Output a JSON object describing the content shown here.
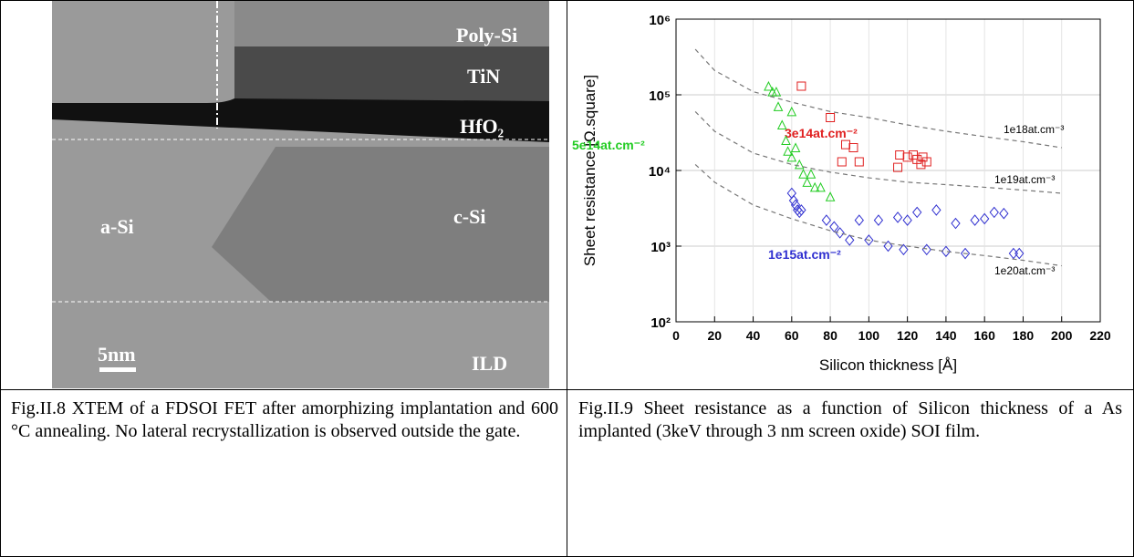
{
  "image_labels": {
    "poly": "Poly-Si",
    "tin": "TiN",
    "hfo2": "HfO₂",
    "asi": "a-Si",
    "csi": "c-Si",
    "ild": "ILD",
    "scale": "5nm"
  },
  "captions": {
    "left": "Fig.II.8 XTEM of a FDSOI FET after amorphizing implantation and 600 °C annealing. No lateral recrystallization is observed outside the gate.",
    "right": "Fig.II.9 Sheet resistance as a function of Silicon thickness of a As implanted (3keV through 3 nm screen oxide) SOI film."
  },
  "chart_data": {
    "type": "scatter",
    "xlabel": "Silicon thickness [Å]",
    "ylabel": "Sheet resistance [Ω.square]",
    "xlim": [
      0,
      220
    ],
    "xticks": [
      0,
      20,
      40,
      60,
      80,
      100,
      120,
      140,
      160,
      180,
      200,
      220
    ],
    "ylim": [
      100,
      1000000
    ],
    "log_y": true,
    "grid": true,
    "yticks": [
      {
        "value": 100,
        "label": "10²"
      },
      {
        "value": 1000,
        "label": "10³"
      },
      {
        "value": 10000,
        "label": "10⁴"
      },
      {
        "value": 100000,
        "label": "10⁵"
      },
      {
        "value": 1000000,
        "label": "10⁶"
      }
    ],
    "series": [
      {
        "name": "3e14at.cm⁻²",
        "color": "#e02020",
        "marker": "square",
        "x": [
          65,
          80,
          86,
          88,
          92,
          95,
          115,
          116,
          120,
          123,
          125,
          127,
          128,
          130
        ],
        "values": [
          130000,
          50000,
          13000,
          22000,
          20000,
          13000,
          11000,
          16000,
          15000,
          16000,
          14000,
          12000,
          15000,
          13000
        ]
      },
      {
        "name": "5e14at.cm⁻²",
        "color": "#22cc22",
        "marker": "triangle",
        "x": [
          48,
          50,
          52,
          53,
          55,
          57,
          58,
          60,
          60,
          62,
          64,
          66,
          68,
          70,
          72,
          75,
          80
        ],
        "values": [
          130000,
          110000,
          110000,
          70000,
          40000,
          25000,
          18000,
          15000,
          60000,
          20000,
          12000,
          9000,
          7000,
          9000,
          6000,
          6000,
          4500
        ]
      },
      {
        "name": "1e15at.cm⁻²",
        "color": "#3030d0",
        "marker": "diamond",
        "x": [
          60,
          61,
          62,
          63,
          64,
          65,
          78,
          82,
          85,
          90,
          95,
          100,
          105,
          110,
          115,
          118,
          120,
          125,
          130,
          135,
          140,
          145,
          150,
          155,
          160,
          165,
          170,
          175,
          178
        ],
        "values": [
          5000,
          4000,
          3500,
          3000,
          2800,
          3000,
          2200,
          1800,
          1500,
          1200,
          2200,
          1200,
          2200,
          1000,
          2400,
          900,
          2200,
          2800,
          900,
          3000,
          850,
          2000,
          800,
          2200,
          2300,
          2800,
          2700,
          800,
          800
        ]
      },
      {
        "name": "1e18at.cm⁻³",
        "color": "#777777",
        "style": "dashed",
        "x": [
          10,
          20,
          40,
          60,
          80,
          100,
          120,
          140,
          160,
          180,
          200
        ],
        "values": [
          400000,
          210000,
          110000,
          80000,
          60000,
          50000,
          40000,
          33000,
          28000,
          24000,
          20000
        ]
      },
      {
        "name": "1e19at.cm⁻³",
        "color": "#777777",
        "style": "dashed",
        "x": [
          10,
          20,
          40,
          60,
          80,
          100,
          120,
          140,
          160,
          180,
          200
        ],
        "values": [
          60000,
          33000,
          17000,
          12000,
          9500,
          8000,
          7000,
          6500,
          6000,
          5500,
          5000
        ]
      },
      {
        "name": "1e20at.cm⁻³",
        "color": "#777777",
        "style": "dashed",
        "x": [
          10,
          20,
          40,
          60,
          80,
          100,
          120,
          140,
          160,
          180,
          200
        ],
        "values": [
          12000,
          7000,
          3500,
          2300,
          1600,
          1200,
          1000,
          850,
          750,
          650,
          550
        ]
      }
    ]
  }
}
